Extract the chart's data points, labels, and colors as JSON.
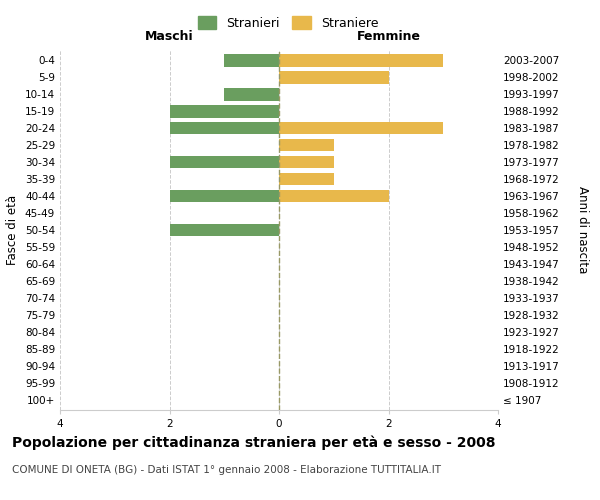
{
  "age_groups": [
    "100+",
    "95-99",
    "90-94",
    "85-89",
    "80-84",
    "75-79",
    "70-74",
    "65-69",
    "60-64",
    "55-59",
    "50-54",
    "45-49",
    "40-44",
    "35-39",
    "30-34",
    "25-29",
    "20-24",
    "15-19",
    "10-14",
    "5-9",
    "0-4"
  ],
  "birth_years": [
    "≤ 1907",
    "1908-1912",
    "1913-1917",
    "1918-1922",
    "1923-1927",
    "1928-1932",
    "1933-1937",
    "1938-1942",
    "1943-1947",
    "1948-1952",
    "1953-1957",
    "1958-1962",
    "1963-1967",
    "1968-1972",
    "1973-1977",
    "1978-1982",
    "1983-1987",
    "1988-1992",
    "1993-1997",
    "1998-2002",
    "2003-2007"
  ],
  "males": [
    0,
    0,
    0,
    0,
    0,
    0,
    0,
    0,
    0,
    0,
    -2,
    0,
    -2,
    0,
    -2,
    0,
    -2,
    -2,
    -1,
    0,
    -1
  ],
  "females": [
    0,
    0,
    0,
    0,
    0,
    0,
    0,
    0,
    0,
    0,
    0,
    0,
    2,
    1,
    1,
    1,
    3,
    0,
    0,
    2,
    3
  ],
  "male_color": "#6a9e5f",
  "female_color": "#e8b84b",
  "xlim": [
    -4,
    4
  ],
  "xlabel_left": "Maschi",
  "xlabel_right": "Femmine",
  "ylabel_left": "Fasce di età",
  "ylabel_right": "Anni di nascita",
  "legend_male": "Stranieri",
  "legend_female": "Straniere",
  "title": "Popolazione per cittadinanza straniera per età e sesso - 2008",
  "subtitle": "COMUNE DI ONETA (BG) - Dati ISTAT 1° gennaio 2008 - Elaborazione TUTTITALIA.IT",
  "bar_height": 0.75,
  "xticks": [
    -4,
    -2,
    0,
    2,
    4
  ],
  "xticklabels": [
    "4",
    "2",
    "0",
    "2",
    "4"
  ],
  "background_color": "#ffffff",
  "grid_color": "#cccccc",
  "vline_color": "#999966",
  "title_fontsize": 10,
  "subtitle_fontsize": 7.5,
  "axis_label_fontsize": 8.5,
  "tick_fontsize": 7.5,
  "legend_fontsize": 9,
  "header_fontsize": 9
}
